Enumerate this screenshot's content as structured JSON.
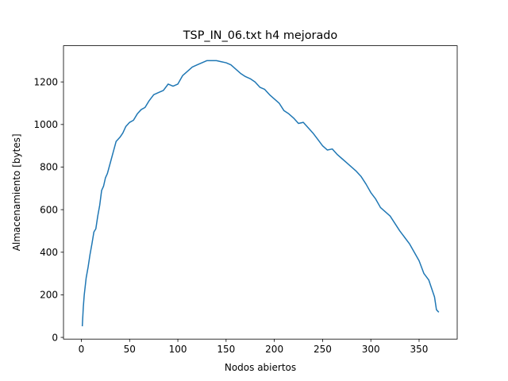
{
  "chart_data": {
    "type": "line",
    "title": "TSP_IN_06.txt h4 mejorado",
    "xlabel": "Nodos abiertos",
    "ylabel": "Almacenamiento [bytes]",
    "xlim": [
      -18.5,
      389.5
    ],
    "ylim": [
      -8,
      1370
    ],
    "xticks": [
      0,
      50,
      100,
      150,
      200,
      250,
      300,
      350
    ],
    "yticks": [
      0,
      200,
      400,
      600,
      800,
      1000,
      1200
    ],
    "grid": false,
    "color": "#1f77b4",
    "series": [
      {
        "x": [
          1,
          2,
          3,
          5,
          7,
          9,
          11,
          13,
          15,
          17,
          19,
          21,
          23,
          25,
          27,
          30,
          33,
          36,
          40,
          43,
          46,
          50,
          54,
          58,
          62,
          66,
          70,
          75,
          80,
          85,
          90,
          95,
          100,
          105,
          110,
          115,
          120,
          125,
          130,
          135,
          140,
          145,
          150,
          155,
          160,
          165,
          170,
          175,
          180,
          185,
          190,
          195,
          200,
          205,
          210,
          215,
          220,
          225,
          230,
          235,
          240,
          245,
          250,
          255,
          260,
          265,
          270,
          275,
          280,
          285,
          290,
          295,
          300,
          305,
          310,
          315,
          320,
          325,
          330,
          335,
          340,
          345,
          350,
          355,
          360,
          363,
          366,
          368,
          370
        ],
        "y": [
          55,
          140,
          200,
          280,
          330,
          390,
          440,
          495,
          510,
          570,
          620,
          690,
          710,
          750,
          770,
          820,
          870,
          920,
          940,
          960,
          990,
          1010,
          1020,
          1050,
          1070,
          1080,
          1110,
          1140,
          1150,
          1160,
          1190,
          1180,
          1190,
          1230,
          1250,
          1270,
          1280,
          1290,
          1300,
          1300,
          1300,
          1295,
          1290,
          1280,
          1260,
          1240,
          1225,
          1215,
          1200,
          1175,
          1165,
          1140,
          1120,
          1100,
          1065,
          1050,
          1030,
          1005,
          1010,
          985,
          960,
          930,
          900,
          880,
          885,
          860,
          840,
          820,
          800,
          780,
          755,
          720,
          680,
          650,
          610,
          590,
          570,
          535,
          500,
          470,
          440,
          400,
          360,
          300,
          270,
          230,
          190,
          130,
          120
        ]
      }
    ]
  }
}
